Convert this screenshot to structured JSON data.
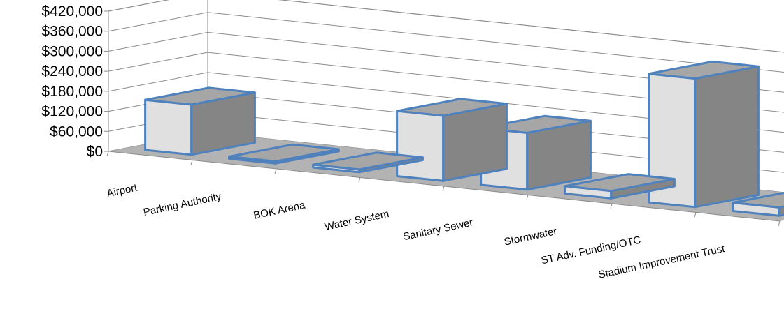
{
  "chart_data": {
    "type": "bar",
    "style": "3d-column",
    "categories": [
      "Airport",
      "Parking Authority",
      "BOK Arena",
      "Water System",
      "Sanitary Sewer",
      "Stormwater",
      "ST Adv. Funding/OTC",
      "Stadium Improvement Trust"
    ],
    "values": [
      150000,
      5000,
      8000,
      195000,
      170000,
      22000,
      385000,
      25000
    ],
    "ylim": [
      0,
      420000
    ],
    "yticks": [
      "$0",
      "$60,000",
      "$120,000",
      "$180,000",
      "$240,000",
      "$300,000",
      "$360,000",
      "$420,000"
    ],
    "grid": true,
    "legend": "none",
    "colors": {
      "front": "#e0e0e0",
      "side": "#858585",
      "top": "#a6a6a6",
      "edge": "#4f81bd",
      "floor": "#b3b3b3",
      "grid": "#8c8c8c"
    }
  }
}
